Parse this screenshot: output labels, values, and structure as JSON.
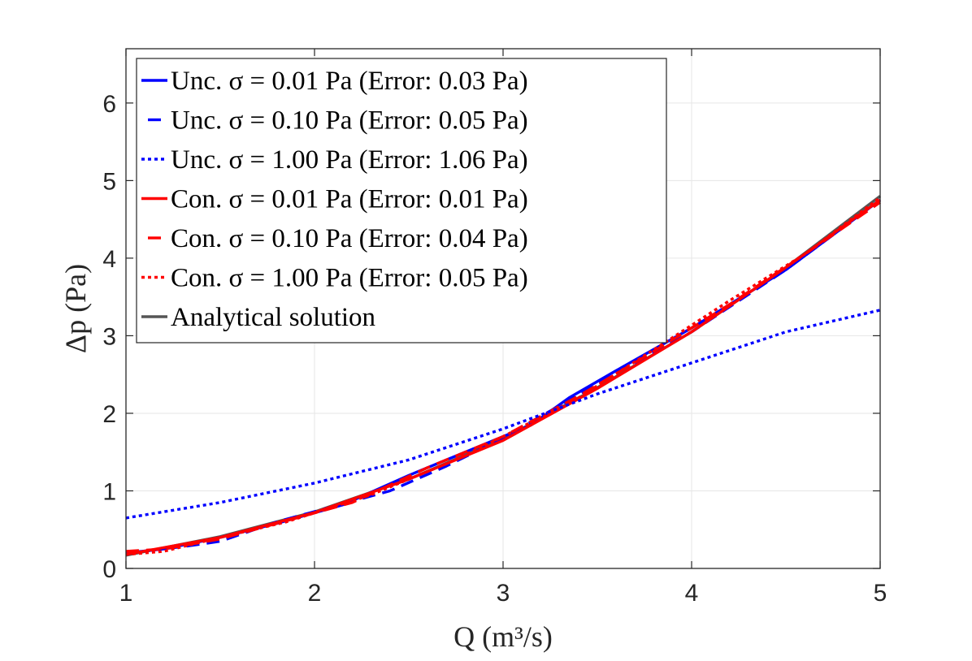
{
  "chart_data": {
    "type": "line",
    "xlabel": "Q (m³/s)",
    "ylabel": "Δp (Pa)",
    "xlim": [
      1,
      5
    ],
    "ylim": [
      0,
      6.7
    ],
    "xticks": [
      "1",
      "2",
      "3",
      "4",
      "5"
    ],
    "yticks": [
      "0",
      "1",
      "2",
      "3",
      "4",
      "5",
      "6"
    ],
    "grid": true,
    "legend_position": "top-left",
    "series": [
      {
        "name": "Unc. σ = 0.01 Pa (Error: 0.03 Pa)",
        "color": "#0000ff",
        "style": "solid",
        "x": [
          1.0,
          1.2,
          1.5,
          1.8,
          2.15,
          2.5,
          2.8,
          3.15,
          3.35,
          3.6,
          4.0,
          4.5,
          5.0
        ],
        "y": [
          0.2,
          0.25,
          0.4,
          0.58,
          0.82,
          1.2,
          1.5,
          1.85,
          2.2,
          2.55,
          3.1,
          3.85,
          4.75
        ]
      },
      {
        "name": "Unc. σ = 0.10 Pa (Error: 0.05 Pa)",
        "color": "#0000ff",
        "style": "dashed",
        "x": [
          1.0,
          1.3,
          1.5,
          1.8,
          2.1,
          2.4,
          2.7,
          3.0,
          3.3,
          3.6,
          4.0,
          4.5,
          5.0
        ],
        "y": [
          0.2,
          0.28,
          0.35,
          0.6,
          0.8,
          1.0,
          1.32,
          1.68,
          2.1,
          2.52,
          3.05,
          3.85,
          4.75
        ]
      },
      {
        "name": "Unc. σ = 1.00 Pa (Error: 1.06 Pa)",
        "color": "#0000ff",
        "style": "dotted",
        "x": [
          1.0,
          1.5,
          2.0,
          2.5,
          3.0,
          3.5,
          4.0,
          4.5,
          5.0
        ],
        "y": [
          0.65,
          0.85,
          1.1,
          1.4,
          1.8,
          2.25,
          2.65,
          3.05,
          3.33
        ]
      },
      {
        "name": "Con. σ = 0.01 Pa (Error: 0.01 Pa)",
        "color": "#ff0000",
        "style": "solid",
        "x": [
          1.0,
          1.5,
          2.0,
          2.5,
          3.0,
          3.5,
          4.0,
          4.5,
          5.0
        ],
        "y": [
          0.18,
          0.4,
          0.72,
          1.15,
          1.65,
          2.32,
          3.05,
          3.88,
          4.75
        ]
      },
      {
        "name": "Con. σ = 0.10 Pa (Error: 0.04 Pa)",
        "color": "#ff0000",
        "style": "dashed",
        "x": [
          1.0,
          1.2,
          1.5,
          1.8,
          2.2,
          2.6,
          3.0,
          3.4,
          3.8,
          4.2,
          4.6,
          5.0
        ],
        "y": [
          0.22,
          0.25,
          0.38,
          0.58,
          0.85,
          1.3,
          1.7,
          2.22,
          2.8,
          3.4,
          4.05,
          4.72
        ]
      },
      {
        "name": "Con. σ = 1.00 Pa (Error: 0.05 Pa)",
        "color": "#ff0000",
        "style": "dotted",
        "x": [
          1.0,
          1.2,
          1.5,
          1.85,
          2.3,
          2.7,
          3.0,
          3.4,
          3.8,
          4.2,
          4.6,
          5.0
        ],
        "y": [
          0.18,
          0.22,
          0.4,
          0.6,
          0.95,
          1.35,
          1.7,
          2.2,
          2.82,
          3.45,
          4.05,
          4.78
        ]
      },
      {
        "name": "Analytical solution",
        "color": "#555555",
        "style": "solid",
        "x": [
          1.0,
          1.5,
          2.0,
          2.5,
          3.0,
          3.5,
          4.0,
          4.5,
          5.0
        ],
        "y": [
          0.17,
          0.41,
          0.73,
          1.15,
          1.67,
          2.33,
          3.05,
          3.88,
          4.8
        ]
      }
    ]
  }
}
